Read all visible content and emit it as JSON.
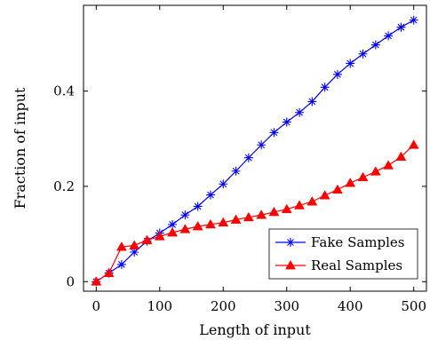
{
  "chart_data": {
    "type": "line",
    "xlabel": "Length of input",
    "ylabel": "Fraction of input",
    "xlim": [
      -20,
      520
    ],
    "ylim": [
      -0.02,
      0.58
    ],
    "xticks": [
      0,
      100,
      200,
      300,
      400,
      500
    ],
    "yticks": [
      0,
      0.2,
      0.4
    ],
    "xtick_labels": [
      "0",
      "100",
      "200",
      "300",
      "400",
      "500"
    ],
    "ytick_labels": [
      "0",
      "0.2",
      "0.4"
    ],
    "grid": false,
    "legend": "bottom-right",
    "x": [
      0,
      20,
      40,
      60,
      80,
      100,
      120,
      140,
      160,
      180,
      200,
      220,
      240,
      260,
      280,
      300,
      320,
      340,
      360,
      380,
      400,
      420,
      440,
      460,
      480,
      500
    ],
    "series": [
      {
        "name": "Fake Samples",
        "color": "#0000ff",
        "marker": "asterisk",
        "values": [
          0.0,
          0.018,
          0.036,
          0.062,
          0.085,
          0.102,
          0.12,
          0.14,
          0.158,
          0.182,
          0.205,
          0.232,
          0.26,
          0.287,
          0.313,
          0.335,
          0.355,
          0.378,
          0.408,
          0.435,
          0.458,
          0.478,
          0.497,
          0.516,
          0.534,
          0.549
        ]
      },
      {
        "name": "Real Samples",
        "color": "#ff0000",
        "marker": "triangle",
        "values": [
          0.0,
          0.018,
          0.073,
          0.076,
          0.087,
          0.095,
          0.103,
          0.11,
          0.116,
          0.12,
          0.124,
          0.13,
          0.135,
          0.14,
          0.146,
          0.152,
          0.16,
          0.168,
          0.181,
          0.193,
          0.207,
          0.219,
          0.231,
          0.244,
          0.262,
          0.287
        ]
      }
    ]
  }
}
